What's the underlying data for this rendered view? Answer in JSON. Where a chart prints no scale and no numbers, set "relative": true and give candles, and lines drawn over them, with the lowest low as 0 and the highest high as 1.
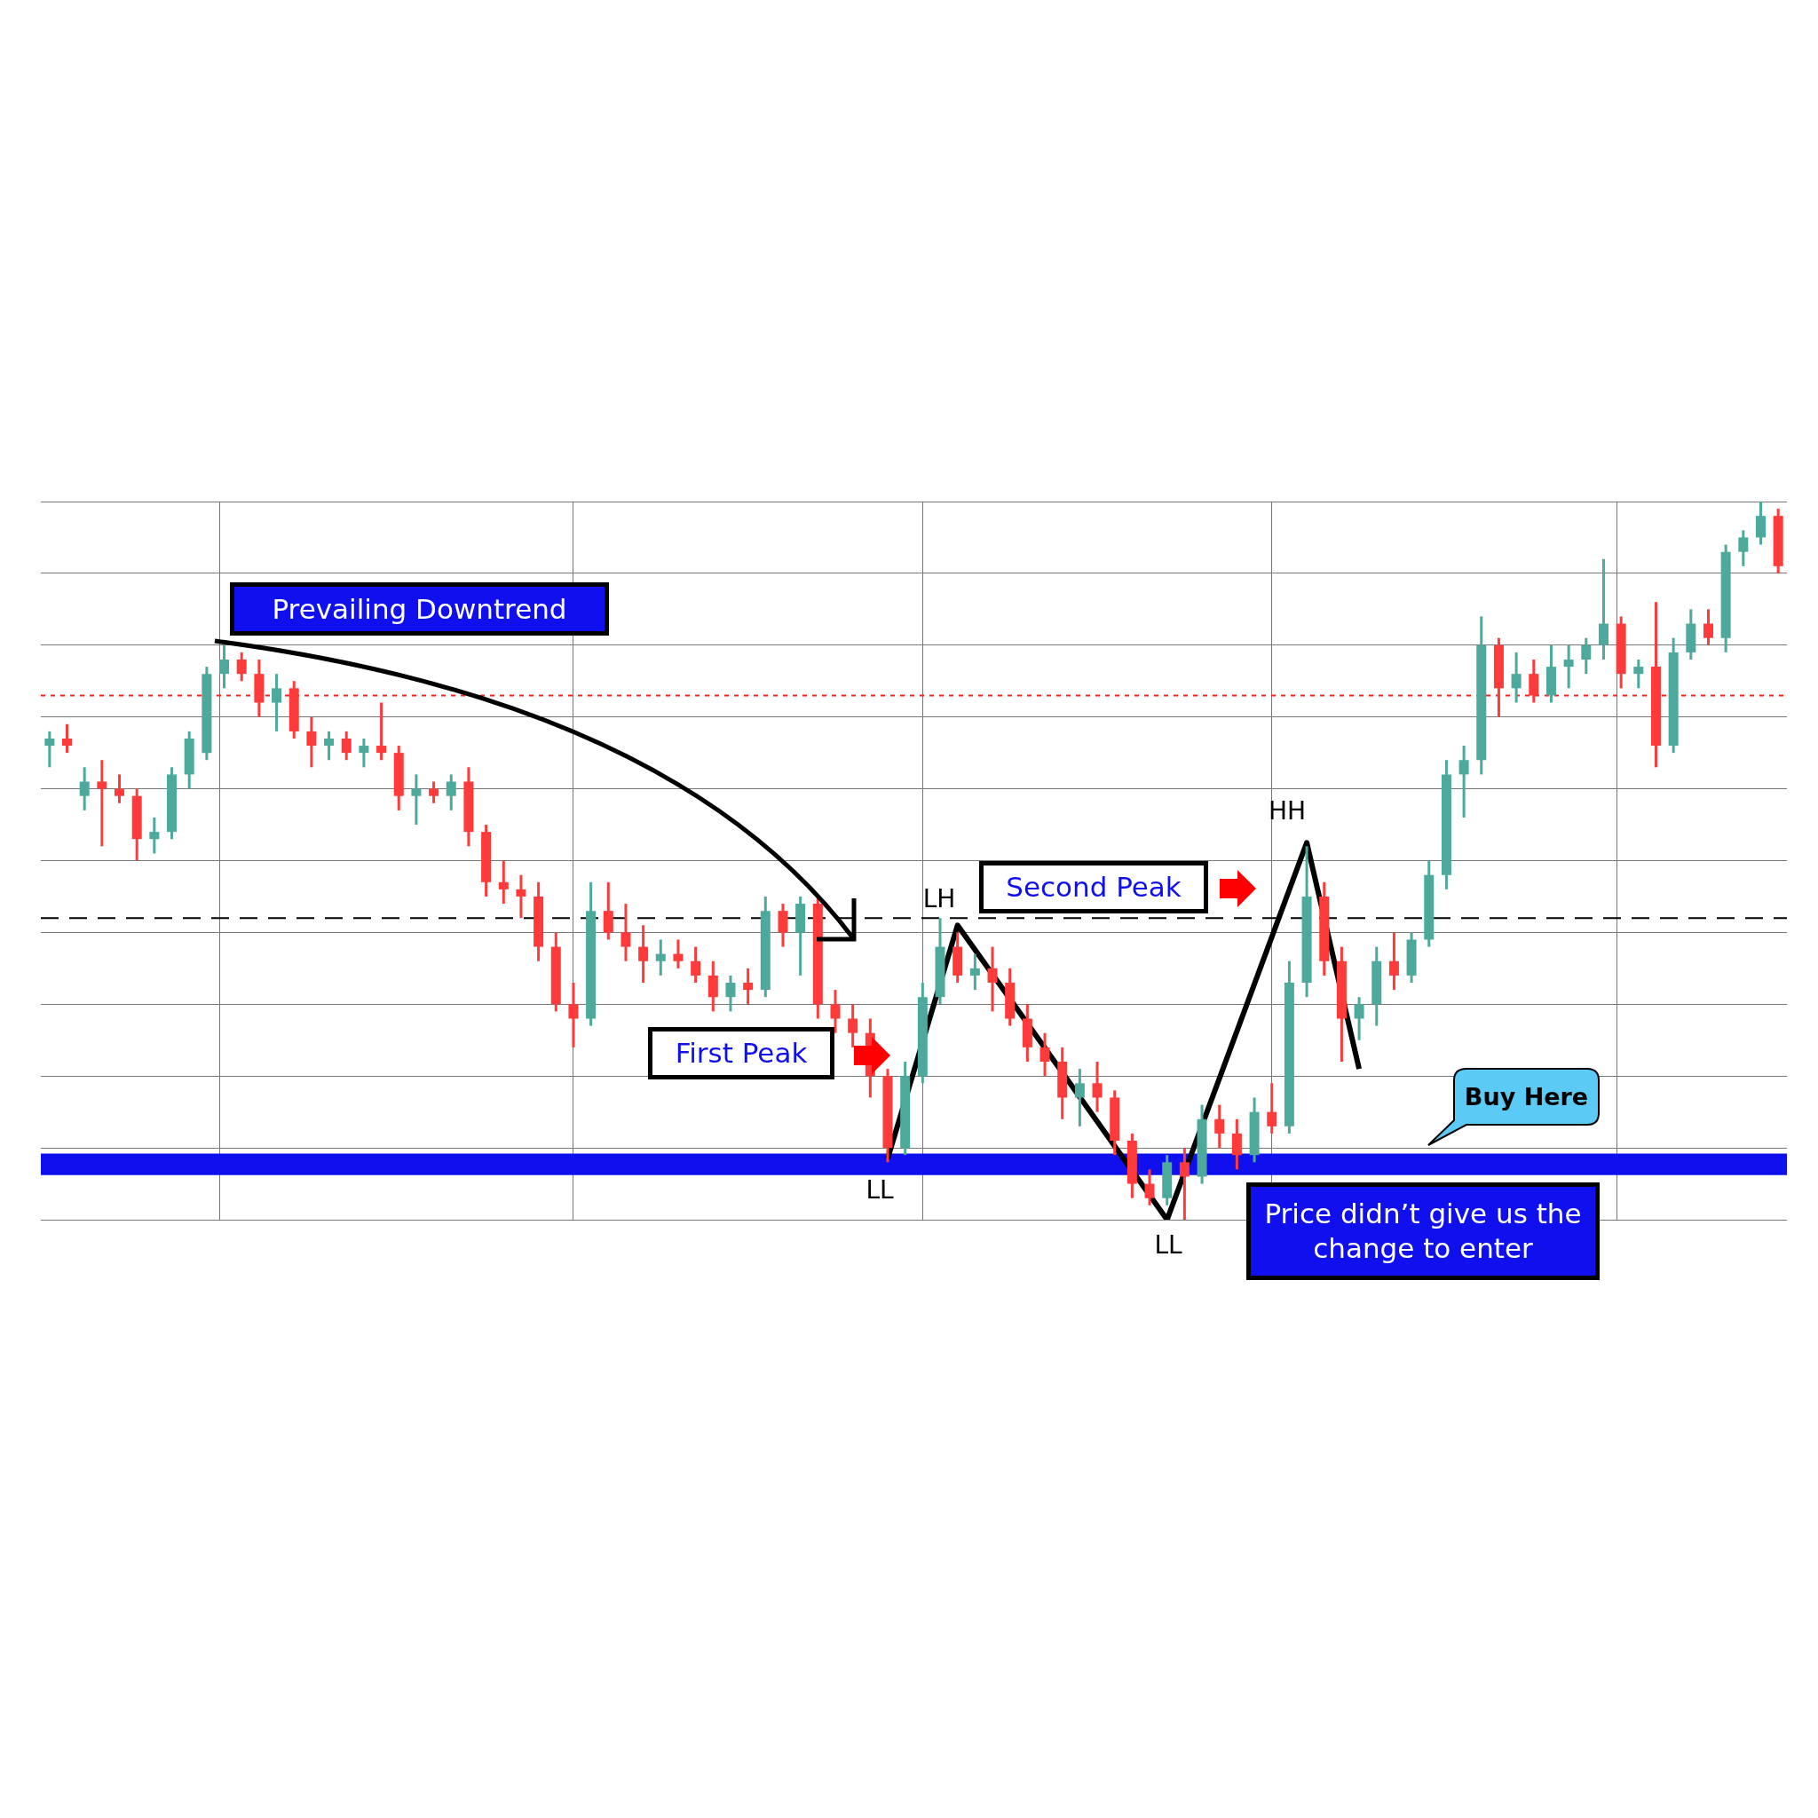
{
  "chart_data": {
    "type": "candlestick",
    "relative": true,
    "grid": true,
    "categories": [
      null,
      null,
      null,
      null,
      null,
      null,
      null,
      null,
      null,
      null,
      null,
      null,
      null,
      null,
      null,
      null,
      null,
      null,
      null,
      null,
      null,
      null,
      null,
      null,
      null,
      null,
      null,
      null,
      null,
      null,
      null,
      null,
      null,
      null,
      null,
      null,
      null,
      null,
      null,
      null,
      null,
      null,
      null,
      null,
      null,
      null,
      null,
      null,
      null,
      null,
      null,
      null,
      null,
      null,
      null,
      null,
      null,
      null,
      null,
      null,
      null,
      null,
      null,
      null,
      null,
      null,
      null,
      null,
      null,
      null,
      null,
      null,
      null,
      null,
      null,
      null,
      null,
      null,
      null,
      null,
      null,
      null,
      null,
      null,
      null,
      null,
      null,
      null,
      null,
      null,
      null,
      null,
      null,
      null,
      null,
      null,
      null,
      null,
      null,
      null
    ],
    "ohlc": [
      [
        0.66,
        0.68,
        0.63,
        0.67
      ],
      [
        0.67,
        0.69,
        0.65,
        0.66
      ],
      [
        0.59,
        0.63,
        0.57,
        0.61
      ],
      [
        0.61,
        0.64,
        0.52,
        0.6
      ],
      [
        0.6,
        0.62,
        0.58,
        0.59
      ],
      [
        0.59,
        0.6,
        0.5,
        0.53
      ],
      [
        0.53,
        0.56,
        0.51,
        0.54
      ],
      [
        0.54,
        0.63,
        0.53,
        0.62
      ],
      [
        0.62,
        0.68,
        0.6,
        0.67
      ],
      [
        0.65,
        0.77,
        0.64,
        0.76
      ],
      [
        0.76,
        0.8,
        0.74,
        0.78
      ],
      [
        0.78,
        0.79,
        0.75,
        0.76
      ],
      [
        0.76,
        0.78,
        0.7,
        0.72
      ],
      [
        0.72,
        0.76,
        0.68,
        0.74
      ],
      [
        0.74,
        0.75,
        0.67,
        0.68
      ],
      [
        0.68,
        0.7,
        0.63,
        0.66
      ],
      [
        0.66,
        0.68,
        0.64,
        0.67
      ],
      [
        0.67,
        0.68,
        0.64,
        0.65
      ],
      [
        0.65,
        0.67,
        0.63,
        0.66
      ],
      [
        0.66,
        0.72,
        0.64,
        0.65
      ],
      [
        0.65,
        0.66,
        0.57,
        0.59
      ],
      [
        0.59,
        0.62,
        0.55,
        0.6
      ],
      [
        0.6,
        0.61,
        0.58,
        0.59
      ],
      [
        0.59,
        0.62,
        0.57,
        0.61
      ],
      [
        0.61,
        0.63,
        0.52,
        0.54
      ],
      [
        0.54,
        0.55,
        0.45,
        0.47
      ],
      [
        0.47,
        0.5,
        0.44,
        0.46
      ],
      [
        0.46,
        0.48,
        0.42,
        0.45
      ],
      [
        0.45,
        0.47,
        0.36,
        0.38
      ],
      [
        0.38,
        0.4,
        0.29,
        0.3
      ],
      [
        0.3,
        0.33,
        0.24,
        0.28
      ],
      [
        0.28,
        0.47,
        0.27,
        0.43
      ],
      [
        0.43,
        0.47,
        0.39,
        0.4
      ],
      [
        0.4,
        0.44,
        0.36,
        0.38
      ],
      [
        0.38,
        0.41,
        0.33,
        0.36
      ],
      [
        0.36,
        0.39,
        0.34,
        0.37
      ],
      [
        0.37,
        0.39,
        0.35,
        0.36
      ],
      [
        0.36,
        0.38,
        0.33,
        0.34
      ],
      [
        0.34,
        0.36,
        0.29,
        0.31
      ],
      [
        0.31,
        0.34,
        0.29,
        0.33
      ],
      [
        0.33,
        0.35,
        0.3,
        0.32
      ],
      [
        0.32,
        0.45,
        0.31,
        0.43
      ],
      [
        0.43,
        0.44,
        0.38,
        0.4
      ],
      [
        0.4,
        0.45,
        0.34,
        0.44
      ],
      [
        0.44,
        0.45,
        0.28,
        0.3
      ],
      [
        0.3,
        0.32,
        0.26,
        0.28
      ],
      [
        0.28,
        0.3,
        0.24,
        0.26
      ],
      [
        0.26,
        0.28,
        0.17,
        0.2
      ],
      [
        0.2,
        0.21,
        0.08,
        0.1
      ],
      [
        0.1,
        0.22,
        0.09,
        0.2
      ],
      [
        0.2,
        0.33,
        0.19,
        0.31
      ],
      [
        0.31,
        0.42,
        0.3,
        0.38
      ],
      [
        0.38,
        0.4,
        0.33,
        0.34
      ],
      [
        0.34,
        0.37,
        0.32,
        0.35
      ],
      [
        0.35,
        0.38,
        0.29,
        0.33
      ],
      [
        0.33,
        0.35,
        0.27,
        0.28
      ],
      [
        0.28,
        0.3,
        0.22,
        0.24
      ],
      [
        0.24,
        0.26,
        0.2,
        0.22
      ],
      [
        0.22,
        0.24,
        0.14,
        0.17
      ],
      [
        0.17,
        0.21,
        0.13,
        0.19
      ],
      [
        0.19,
        0.22,
        0.15,
        0.17
      ],
      [
        0.17,
        0.18,
        0.09,
        0.11
      ],
      [
        0.11,
        0.12,
        0.03,
        0.05
      ],
      [
        0.05,
        0.07,
        0.02,
        0.03
      ],
      [
        0.03,
        0.09,
        0.02,
        0.08
      ],
      [
        0.08,
        0.1,
        0.0,
        0.06
      ],
      [
        0.06,
        0.16,
        0.05,
        0.14
      ],
      [
        0.14,
        0.16,
        0.1,
        0.12
      ],
      [
        0.12,
        0.14,
        0.07,
        0.09
      ],
      [
        0.09,
        0.17,
        0.08,
        0.15
      ],
      [
        0.15,
        0.19,
        0.12,
        0.13
      ],
      [
        0.13,
        0.36,
        0.12,
        0.33
      ],
      [
        0.33,
        0.52,
        0.31,
        0.45
      ],
      [
        0.45,
        0.47,
        0.34,
        0.36
      ],
      [
        0.36,
        0.38,
        0.22,
        0.28
      ],
      [
        0.28,
        0.31,
        0.25,
        0.3
      ],
      [
        0.3,
        0.38,
        0.27,
        0.36
      ],
      [
        0.36,
        0.4,
        0.32,
        0.34
      ],
      [
        0.34,
        0.4,
        0.33,
        0.39
      ],
      [
        0.39,
        0.5,
        0.38,
        0.48
      ],
      [
        0.48,
        0.64,
        0.46,
        0.62
      ],
      [
        0.62,
        0.66,
        0.56,
        0.64
      ],
      [
        0.64,
        0.84,
        0.62,
        0.8
      ],
      [
        0.8,
        0.81,
        0.7,
        0.74
      ],
      [
        0.74,
        0.79,
        0.72,
        0.76
      ],
      [
        0.76,
        0.78,
        0.72,
        0.73
      ],
      [
        0.73,
        0.8,
        0.72,
        0.77
      ],
      [
        0.77,
        0.8,
        0.74,
        0.78
      ],
      [
        0.78,
        0.81,
        0.76,
        0.8
      ],
      [
        0.8,
        0.92,
        0.78,
        0.83
      ],
      [
        0.83,
        0.84,
        0.74,
        0.76
      ],
      [
        0.76,
        0.78,
        0.74,
        0.77
      ],
      [
        0.77,
        0.86,
        0.63,
        0.66
      ],
      [
        0.66,
        0.81,
        0.65,
        0.79
      ],
      [
        0.79,
        0.85,
        0.78,
        0.83
      ],
      [
        0.83,
        0.85,
        0.8,
        0.81
      ],
      [
        0.81,
        0.94,
        0.79,
        0.93
      ],
      [
        0.93,
        0.96,
        0.91,
        0.95
      ],
      [
        0.95,
        1.0,
        0.94,
        0.98
      ],
      [
        0.98,
        0.99,
        0.9,
        0.91
      ]
    ],
    "series": [
      {
        "type": "line",
        "values": [
          null,
          null,
          null,
          null,
          null,
          null,
          null,
          null,
          null,
          null,
          null,
          null,
          null,
          null,
          null,
          null,
          null,
          null,
          null,
          null,
          null,
          null,
          null,
          null,
          null,
          null,
          null,
          null,
          null,
          null,
          null,
          null,
          null,
          null,
          null,
          null,
          null,
          null,
          null,
          null,
          null,
          null,
          null,
          null,
          null,
          null,
          null,
          null,
          0.085,
          null,
          null,
          null,
          0.41,
          null,
          null,
          null,
          null,
          null,
          null,
          null,
          null,
          null,
          null,
          null,
          0,
          null,
          null,
          null,
          null,
          null,
          null,
          null,
          0.525,
          null,
          null,
          0.21,
          null,
          null,
          null,
          null,
          null,
          null,
          null,
          null,
          null,
          null,
          null,
          null,
          null,
          null,
          null,
          null,
          null,
          null,
          null,
          null,
          null,
          null,
          null,
          null
        ],
        "color": "#000000"
      }
    ],
    "ref_lines": [
      {
        "axis": "y",
        "value": 0.73,
        "color": "#ff2020",
        "line_style": "dotted"
      },
      {
        "axis": "y",
        "value": 0.42,
        "color": "#000000",
        "line_style": "dashed"
      }
    ],
    "bands": [
      {
        "axis": "y",
        "from": 0.062,
        "to": 0.092,
        "color": "#1010ee"
      }
    ],
    "annotations": [
      "Prevailing Downtrend",
      "First Peak",
      "Second Peak",
      "Buy Here",
      "Price didn’t give us the change to enter",
      "LH",
      "HH",
      "LL",
      "LL"
    ]
  }
}
